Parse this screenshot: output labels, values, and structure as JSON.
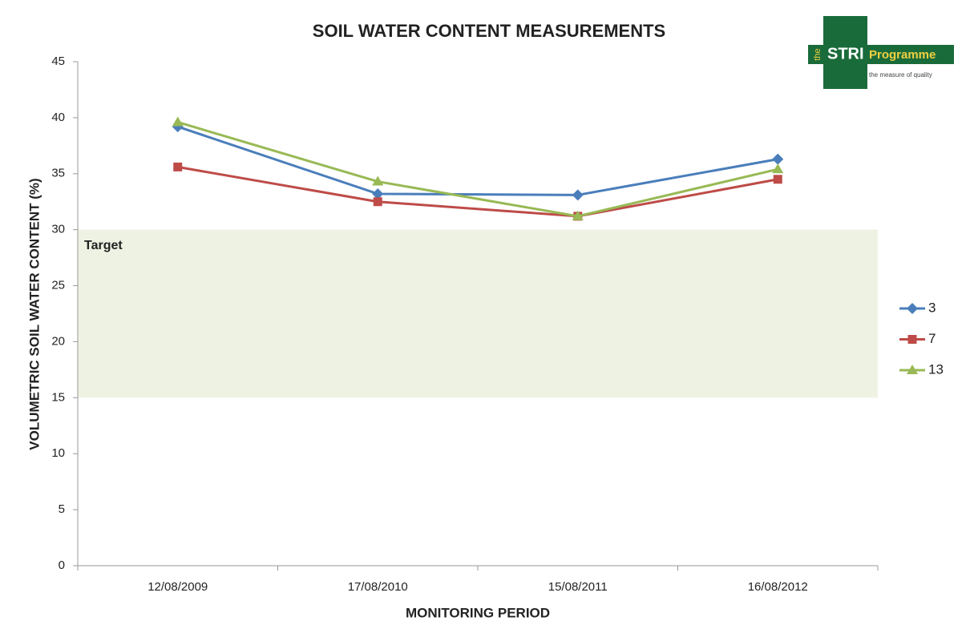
{
  "logo_text": [
    "the",
    "STRI",
    "Programme",
    "the measure of quality"
  ],
  "chart_data": {
    "type": "line",
    "title": "SOIL WATER CONTENT MEASUREMENTS",
    "x_label": "MONITORING PERIOD",
    "y_label": "VOLUMETRIC SOIL WATER CONTENT (%)",
    "categories": [
      "12/08/2009",
      "17/08/2010",
      "15/08/2011",
      "16/08/2012"
    ],
    "series": [
      {
        "name": "3",
        "color": "#4a7ebb",
        "marker": "diamond",
        "values": [
          39.2,
          33.2,
          33.1,
          36.3
        ]
      },
      {
        "name": "7",
        "color": "#be4b48",
        "marker": "square",
        "values": [
          35.6,
          32.5,
          31.2,
          34.5
        ]
      },
      {
        "name": "13",
        "color": "#98b954",
        "marker": "triangle",
        "values": [
          39.6,
          34.3,
          31.2,
          35.4
        ]
      }
    ],
    "ylim": [
      0,
      45
    ],
    "yticks": [
      0,
      5,
      10,
      15,
      20,
      25,
      30,
      35,
      40,
      45
    ],
    "target_band": {
      "range": [
        15,
        30
      ],
      "label": "Target",
      "color": "#eef2e2"
    },
    "legend": "right",
    "grid": false
  }
}
